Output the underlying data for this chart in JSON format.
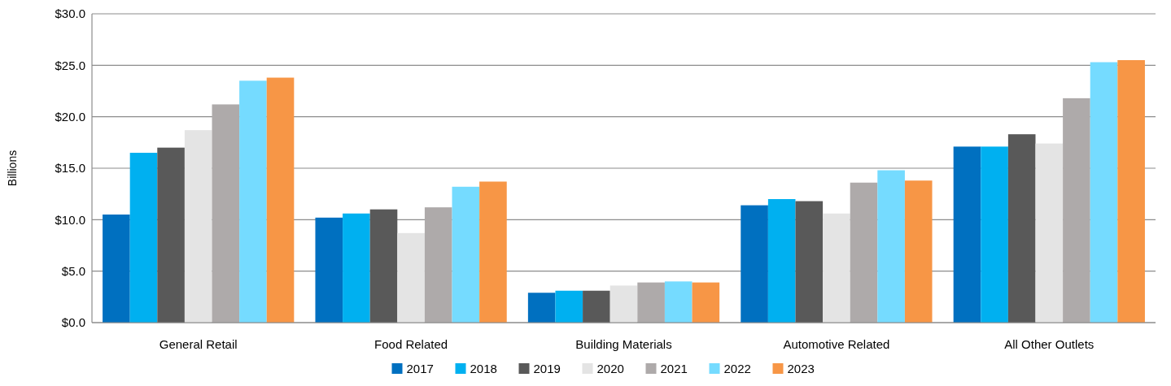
{
  "chart_data": {
    "type": "bar",
    "ylabel": "Billions",
    "categories": [
      "General Retail",
      "Food Related",
      "Building Materials",
      "Automotive Related",
      "All Other Outlets"
    ],
    "series": [
      {
        "name": "2017",
        "color": "#0070c0",
        "values": [
          10.5,
          10.2,
          2.9,
          11.4,
          17.1
        ]
      },
      {
        "name": "2018",
        "color": "#00b0f0",
        "values": [
          16.5,
          10.6,
          3.1,
          12.0,
          17.1
        ]
      },
      {
        "name": "2019",
        "color": "#595959",
        "values": [
          17.0,
          11.0,
          3.1,
          11.8,
          18.3
        ]
      },
      {
        "name": "2020",
        "color": "#e4e4e4",
        "values": [
          18.7,
          8.7,
          3.6,
          10.6,
          17.4
        ]
      },
      {
        "name": "2021",
        "color": "#aeaaaa",
        "values": [
          21.2,
          11.2,
          3.9,
          13.6,
          21.8
        ]
      },
      {
        "name": "2022",
        "color": "#75dbff",
        "values": [
          23.5,
          13.2,
          4.0,
          14.8,
          25.3
        ]
      },
      {
        "name": "2023",
        "color": "#f79646",
        "values": [
          23.8,
          13.7,
          3.9,
          13.8,
          25.5
        ]
      }
    ],
    "ylim": [
      0,
      30
    ],
    "yticks": [
      {
        "value": 0,
        "label": "$0.0"
      },
      {
        "value": 5,
        "label": "$5.0"
      },
      {
        "value": 10,
        "label": "$10.0"
      },
      {
        "value": 15,
        "label": "$15.0"
      },
      {
        "value": 20,
        "label": "$20.0"
      },
      {
        "value": 25,
        "label": "$25.0"
      },
      {
        "value": 30,
        "label": "$30.0"
      }
    ],
    "grid": "y",
    "legend": "bottom"
  }
}
